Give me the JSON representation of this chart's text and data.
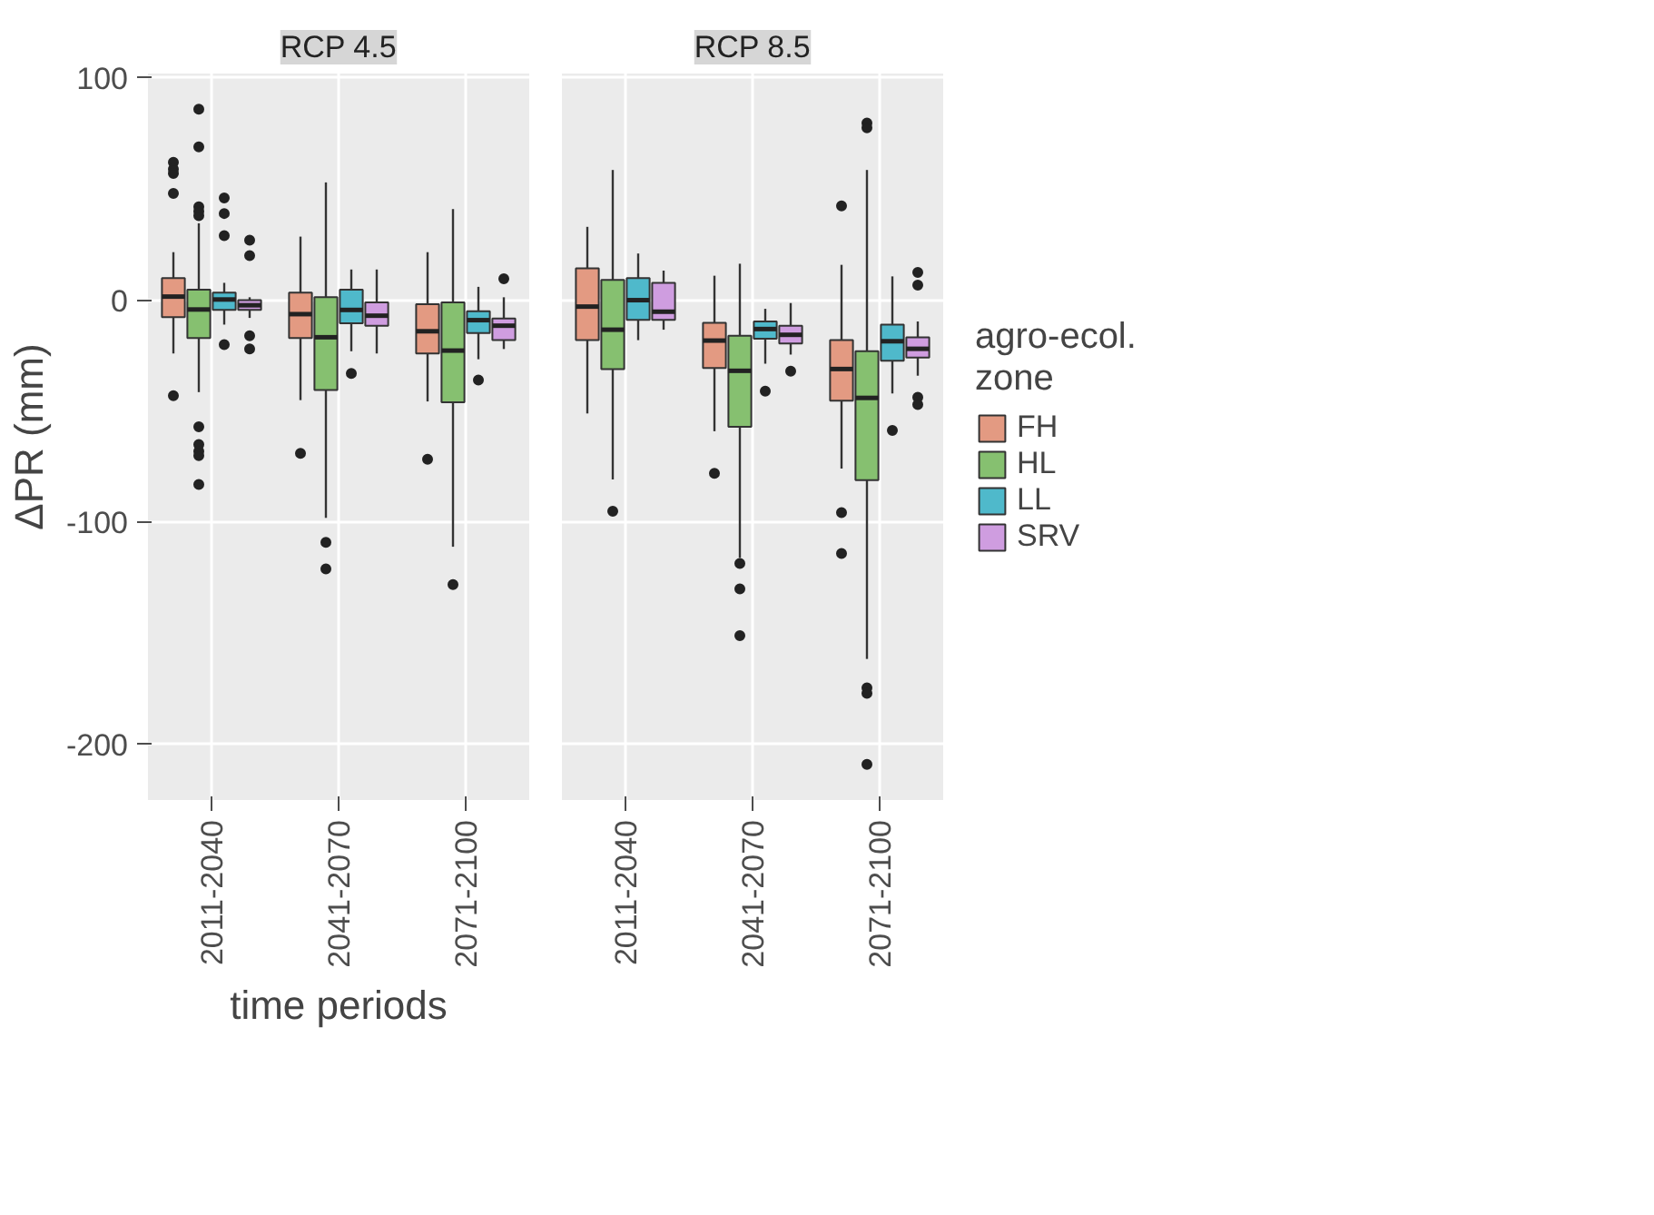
{
  "chart_data": [
    {
      "type": "box",
      "title": "RCP 4.5",
      "ylabel": "ΔPR (mm)",
      "xlabel": "time periods",
      "categories": [
        "2011-2040",
        "2041-2070",
        "2071-2100"
      ],
      "ylim": [
        -225,
        102
      ],
      "yticks": [
        -200,
        -100,
        0,
        100
      ],
      "grid": true,
      "series": [
        {
          "name": "FH",
          "color": "#e39a82",
          "boxes": [
            {
              "low": -24,
              "q1": -7.6,
              "median": 1.6,
              "q3": 9.9,
              "high": 21.6,
              "outliers": [
                62,
                59,
                57,
                48,
                -43
              ]
            },
            {
              "low": -45,
              "q1": -17,
              "median": -6.3,
              "q3": 3.4,
              "high": 28.6,
              "outliers": [
                -69
              ]
            },
            {
              "low": -45.6,
              "q1": -24,
              "median": -14,
              "q3": -1.8,
              "high": 21.6,
              "outliers": [
                -71.6
              ]
            }
          ]
        },
        {
          "name": "HL",
          "color": "#86c070",
          "boxes": [
            {
              "low": -41.4,
              "q1": -17,
              "median": -4.2,
              "q3": 4.7,
              "high": 34.6,
              "outliers": [
                86,
                69,
                42,
                40,
                38,
                -57,
                -65,
                -68,
                -70,
                -83
              ]
            },
            {
              "low": -98,
              "q1": -40.4,
              "median": -16.7,
              "q3": 1.3,
              "high": 53,
              "outliers": [
                -109,
                -121
              ]
            },
            {
              "low": -111,
              "q1": -46,
              "median": -22.7,
              "q3": -1,
              "high": 41,
              "outliers": [
                -128
              ]
            }
          ]
        },
        {
          "name": "LL",
          "color": "#4fb9cb",
          "boxes": [
            {
              "low": -11,
              "q1": -4.4,
              "median": 0.3,
              "q3": 3.4,
              "high": 7.8,
              "outliers": [
                46,
                39,
                29,
                -20
              ]
            },
            {
              "low": -23,
              "q1": -10.4,
              "median": -4.4,
              "q3": 4.7,
              "high": 13.8,
              "outliers": [
                -33
              ]
            },
            {
              "low": -26.6,
              "q1": -14.8,
              "median": -9,
              "q3": -5,
              "high": 6,
              "outliers": [
                -36
              ]
            }
          ]
        },
        {
          "name": "SRV",
          "color": "#cf9de0",
          "boxes": [
            {
              "low": -8,
              "q1": -4.4,
              "median": -2.3,
              "q3": 0,
              "high": 1.3,
              "outliers": [
                27,
                20,
                -16,
                -22
              ]
            },
            {
              "low": -24,
              "q1": -11.5,
              "median": -7,
              "q3": -1,
              "high": 13.8
            },
            {
              "low": -22,
              "q1": -18,
              "median": -11.5,
              "q3": -8.3,
              "high": 1.3,
              "outliers": [
                9.6
              ]
            }
          ]
        }
      ],
      "tick_labels": "xy",
      "legend": "right",
      "legend_title": "agro-ecol.\nzone"
    },
    {
      "type": "box",
      "title": "RCP 8.5",
      "categories": [
        "2011-2040",
        "2041-2070",
        "2071-2100"
      ],
      "ylim": [
        -225,
        102
      ],
      "yticks": [
        -200,
        -100,
        0,
        100
      ],
      "grid": true,
      "tick_labels": "x",
      "series": [
        {
          "color": "#e39a82",
          "boxes": [
            {
              "low": -51,
              "q1": -18,
              "median": -2.9,
              "q3": 14.3,
              "high": 33
            },
            {
              "low": -59,
              "q1": -30.5,
              "median": -18.2,
              "q3": -10.2,
              "high": 11,
              "outliers": [
                -78
              ]
            },
            {
              "low": -75.8,
              "q1": -45.3,
              "median": -31,
              "q3": -18,
              "high": 15.9,
              "outliers": [
                42.4,
                -95.6,
                -114
              ]
            }
          ]
        },
        {
          "color": "#86c070",
          "boxes": [
            {
              "low": -80.7,
              "q1": -31,
              "median": -13.3,
              "q3": 9.1,
              "high": 58.6,
              "outliers": [
                -95
              ]
            },
            {
              "low": -116,
              "q1": -57,
              "median": -31.8,
              "q3": -16,
              "high": 16.4,
              "outliers": [
                -118.5,
                -130,
                -151
              ]
            },
            {
              "low": -161.5,
              "q1": -81,
              "median": -44,
              "q3": -23,
              "high": 58.6,
              "outliers": [
                79.7,
                77.6,
                -174.5,
                -177,
                -209
              ]
            }
          ]
        },
        {
          "color": "#4fb9cb",
          "boxes": [
            {
              "low": -18,
              "q1": -8.9,
              "median": 0,
              "q3": 9.9,
              "high": 21
            },
            {
              "low": -28.6,
              "q1": -17.4,
              "median": -13,
              "q3": -9.6,
              "high": -3.9,
              "outliers": [
                -41
              ]
            },
            {
              "low": -42,
              "q1": -27.3,
              "median": -18.5,
              "q3": -11,
              "high": 10.7,
              "outliers": [
                -58.6
              ]
            }
          ]
        },
        {
          "color": "#cf9de0",
          "boxes": [
            {
              "low": -13.3,
              "q1": -8.9,
              "median": -5.2,
              "q3": 7.8,
              "high": 13.3
            },
            {
              "low": -24.5,
              "q1": -19.5,
              "median": -15.6,
              "q3": -11.5,
              "high": -1.3,
              "outliers": [
                -32
              ]
            },
            {
              "low": -34,
              "q1": -25.8,
              "median": -21.9,
              "q3": -16.7,
              "high": -9.6,
              "outliers": [
                12.5,
                6.8,
                -43.7,
                -47
              ]
            }
          ]
        }
      ]
    }
  ]
}
